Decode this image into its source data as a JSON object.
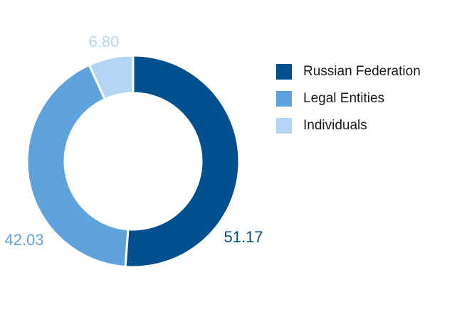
{
  "chart_data": {
    "type": "pie",
    "variant": "donut",
    "title": "",
    "categories": [
      "Russian Federation",
      "Legal Entities",
      "Individuals"
    ],
    "values": [
      51.17,
      42.03,
      6.8
    ],
    "value_labels": [
      "51.17",
      "42.03",
      "6.80"
    ],
    "colors": [
      "#00508F",
      "#5FA3DD",
      "#B3D4F2"
    ],
    "label_colors": [
      "#00508F",
      "#5FA3DD",
      "#B3D4F2"
    ],
    "start_angle_deg": 0,
    "direction": "clockwise",
    "legend": {
      "position": "right",
      "entries": [
        "Russian Federation",
        "Legal Entities",
        "Individuals"
      ]
    }
  }
}
